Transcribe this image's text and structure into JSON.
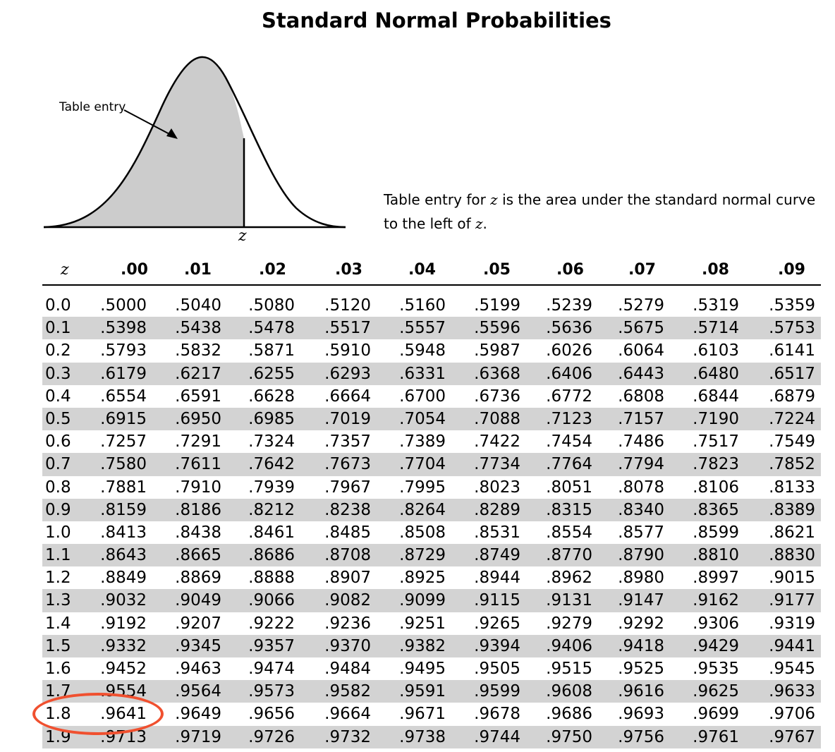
{
  "title": "Standard Normal Probabilities",
  "figure": {
    "entry_label": "Table entry",
    "z_label": "z"
  },
  "description": {
    "part1": "Table entry for ",
    "z": "z",
    "part2": " is the area under the standard normal curve to the left of ",
    "z2": "z",
    "part3": "."
  },
  "table": {
    "z_header": "z",
    "columns": [
      ".00",
      ".01",
      ".02",
      ".03",
      ".04",
      ".05",
      ".06",
      ".07",
      ".08",
      ".09"
    ],
    "rows": [
      {
        "z": "0.0",
        "values": [
          ".5000",
          ".5040",
          ".5080",
          ".5120",
          ".5160",
          ".5199",
          ".5239",
          ".5279",
          ".5319",
          ".5359"
        ]
      },
      {
        "z": "0.1",
        "values": [
          ".5398",
          ".5438",
          ".5478",
          ".5517",
          ".5557",
          ".5596",
          ".5636",
          ".5675",
          ".5714",
          ".5753"
        ]
      },
      {
        "z": "0.2",
        "values": [
          ".5793",
          ".5832",
          ".5871",
          ".5910",
          ".5948",
          ".5987",
          ".6026",
          ".6064",
          ".6103",
          ".6141"
        ]
      },
      {
        "z": "0.3",
        "values": [
          ".6179",
          ".6217",
          ".6255",
          ".6293",
          ".6331",
          ".6368",
          ".6406",
          ".6443",
          ".6480",
          ".6517"
        ]
      },
      {
        "z": "0.4",
        "values": [
          ".6554",
          ".6591",
          ".6628",
          ".6664",
          ".6700",
          ".6736",
          ".6772",
          ".6808",
          ".6844",
          ".6879"
        ]
      },
      {
        "z": "0.5",
        "values": [
          ".6915",
          ".6950",
          ".6985",
          ".7019",
          ".7054",
          ".7088",
          ".7123",
          ".7157",
          ".7190",
          ".7224"
        ]
      },
      {
        "z": "0.6",
        "values": [
          ".7257",
          ".7291",
          ".7324",
          ".7357",
          ".7389",
          ".7422",
          ".7454",
          ".7486",
          ".7517",
          ".7549"
        ]
      },
      {
        "z": "0.7",
        "values": [
          ".7580",
          ".7611",
          ".7642",
          ".7673",
          ".7704",
          ".7734",
          ".7764",
          ".7794",
          ".7823",
          ".7852"
        ]
      },
      {
        "z": "0.8",
        "values": [
          ".7881",
          ".7910",
          ".7939",
          ".7967",
          ".7995",
          ".8023",
          ".8051",
          ".8078",
          ".8106",
          ".8133"
        ]
      },
      {
        "z": "0.9",
        "values": [
          ".8159",
          ".8186",
          ".8212",
          ".8238",
          ".8264",
          ".8289",
          ".8315",
          ".8340",
          ".8365",
          ".8389"
        ]
      },
      {
        "z": "1.0",
        "values": [
          ".8413",
          ".8438",
          ".8461",
          ".8485",
          ".8508",
          ".8531",
          ".8554",
          ".8577",
          ".8599",
          ".8621"
        ]
      },
      {
        "z": "1.1",
        "values": [
          ".8643",
          ".8665",
          ".8686",
          ".8708",
          ".8729",
          ".8749",
          ".8770",
          ".8790",
          ".8810",
          ".8830"
        ]
      },
      {
        "z": "1.2",
        "values": [
          ".8849",
          ".8869",
          ".8888",
          ".8907",
          ".8925",
          ".8944",
          ".8962",
          ".8980",
          ".8997",
          ".9015"
        ]
      },
      {
        "z": "1.3",
        "values": [
          ".9032",
          ".9049",
          ".9066",
          ".9082",
          ".9099",
          ".9115",
          ".9131",
          ".9147",
          ".9162",
          ".9177"
        ]
      },
      {
        "z": "1.4",
        "values": [
          ".9192",
          ".9207",
          ".9222",
          ".9236",
          ".9251",
          ".9265",
          ".9279",
          ".9292",
          ".9306",
          ".9319"
        ]
      },
      {
        "z": "1.5",
        "values": [
          ".9332",
          ".9345",
          ".9357",
          ".9370",
          ".9382",
          ".9394",
          ".9406",
          ".9418",
          ".9429",
          ".9441"
        ]
      },
      {
        "z": "1.6",
        "values": [
          ".9452",
          ".9463",
          ".9474",
          ".9484",
          ".9495",
          ".9505",
          ".9515",
          ".9525",
          ".9535",
          ".9545"
        ]
      },
      {
        "z": "1.7",
        "values": [
          ".9554",
          ".9564",
          ".9573",
          ".9582",
          ".9591",
          ".9599",
          ".9608",
          ".9616",
          ".9625",
          ".9633"
        ]
      },
      {
        "z": "1.8",
        "values": [
          ".9641",
          ".9649",
          ".9656",
          ".9664",
          ".9671",
          ".9678",
          ".9686",
          ".9693",
          ".9699",
          ".9706"
        ]
      },
      {
        "z": "1.9",
        "values": [
          ".9713",
          ".9719",
          ".9726",
          ".9732",
          ".9738",
          ".9744",
          ".9750",
          ".9756",
          ".9761",
          ".9767"
        ]
      }
    ]
  },
  "colors": {
    "shade": "#d3d3d3",
    "curve_fill": "#cccccc",
    "highlight": "#f0502f"
  }
}
